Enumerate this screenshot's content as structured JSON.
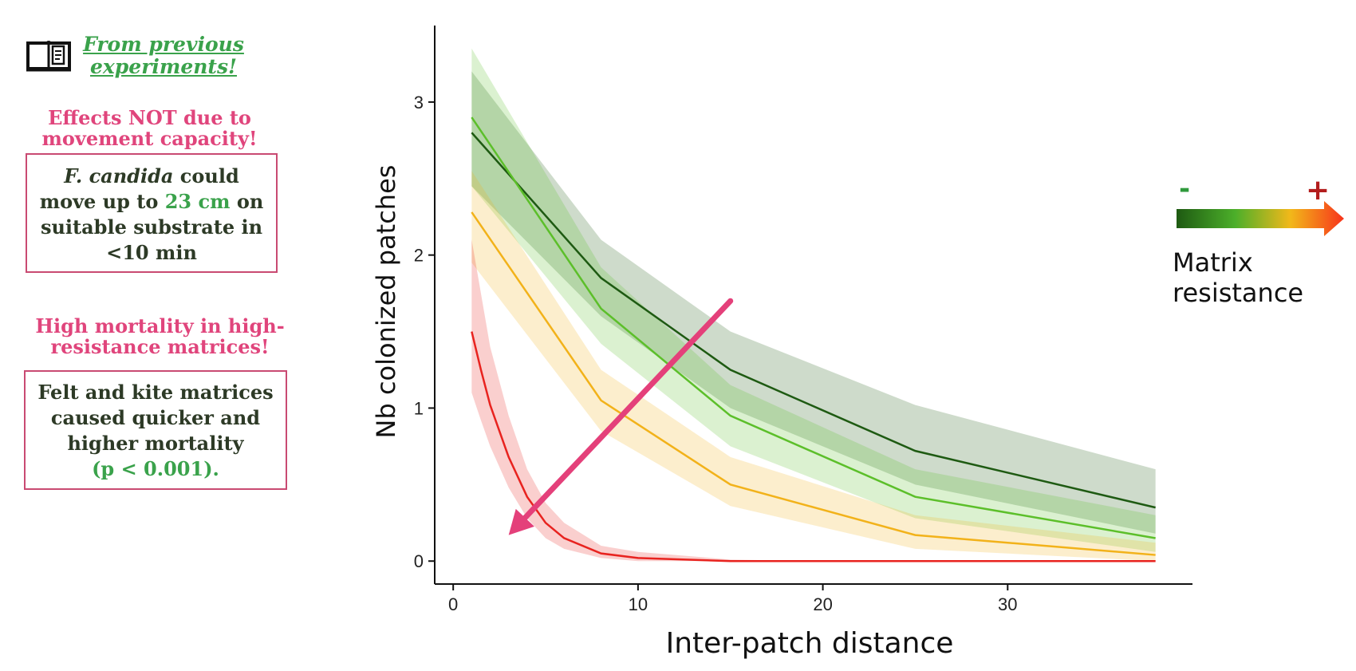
{
  "sidebar": {
    "note_link": "From previous experiments!",
    "heading1": "Effects NOT due to movement capacity!",
    "box1": {
      "species": "F. candida",
      "t1": " could move up to ",
      "distance": "23 cm",
      "t2": " on suitable substrate in <10 min"
    },
    "heading2": "High mortality in high-resistance matrices!",
    "box2": {
      "text": "Felt and kite matrices caused quicker and higher mortality",
      "pvalue": "(p < 0.001)."
    }
  },
  "legend": {
    "minus": "-",
    "plus": "+",
    "label": "Matrix resistance",
    "colors": [
      "#1e5a12",
      "#4caf2a",
      "#f2b81a",
      "#f7331b"
    ]
  },
  "chart_data": {
    "type": "line",
    "xlabel": "Inter-patch distance",
    "ylabel": "Nb colonized patches",
    "xlim": [
      -1,
      40
    ],
    "ylim": [
      -0.15,
      3.5
    ],
    "xticks": [
      0,
      10,
      20,
      30
    ],
    "yticks": [
      0,
      1,
      2,
      3
    ],
    "grid": false,
    "series": [
      {
        "color": "#1e5a12",
        "x": [
          1,
          8,
          15,
          25,
          38
        ],
        "y": [
          2.8,
          1.85,
          1.25,
          0.72,
          0.35
        ],
        "lower": [
          2.45,
          1.6,
          1.0,
          0.5,
          0.18
        ],
        "upper": [
          3.2,
          2.1,
          1.5,
          1.02,
          0.6
        ]
      },
      {
        "color": "#5cbf2a",
        "x": [
          1,
          8,
          15,
          25,
          38
        ],
        "y": [
          2.9,
          1.65,
          0.95,
          0.42,
          0.15
        ],
        "lower": [
          2.45,
          1.42,
          0.75,
          0.28,
          0.06
        ],
        "upper": [
          3.35,
          1.92,
          1.15,
          0.6,
          0.3
        ]
      },
      {
        "color": "#f2b21a",
        "x": [
          1,
          8,
          15,
          25,
          38
        ],
        "y": [
          2.28,
          1.05,
          0.5,
          0.17,
          0.04
        ],
        "lower": [
          1.95,
          0.85,
          0.36,
          0.08,
          0.0
        ],
        "upper": [
          2.55,
          1.25,
          0.68,
          0.3,
          0.12
        ]
      },
      {
        "color": "#e8231f",
        "x": [
          1,
          1.5,
          2,
          3,
          4,
          5,
          6,
          8,
          10,
          15,
          20,
          25,
          30,
          38
        ],
        "y": [
          1.5,
          1.25,
          1.02,
          0.68,
          0.42,
          0.25,
          0.15,
          0.05,
          0.02,
          0.0,
          0.0,
          0.0,
          0.0,
          0.0
        ],
        "lower": [
          1.1,
          0.92,
          0.75,
          0.48,
          0.28,
          0.15,
          0.08,
          0.02,
          0.0,
          0.0,
          0.0,
          0.0,
          0.0,
          0.0
        ],
        "upper": [
          2.1,
          1.75,
          1.4,
          0.95,
          0.6,
          0.38,
          0.25,
          0.1,
          0.06,
          0.01,
          0.0,
          0.0,
          0.0,
          0.0
        ]
      }
    ],
    "annotations": [
      {
        "type": "arrow",
        "color": "#e4407a",
        "from": [
          15,
          1.7
        ],
        "to": [
          3,
          0.17
        ]
      }
    ]
  }
}
